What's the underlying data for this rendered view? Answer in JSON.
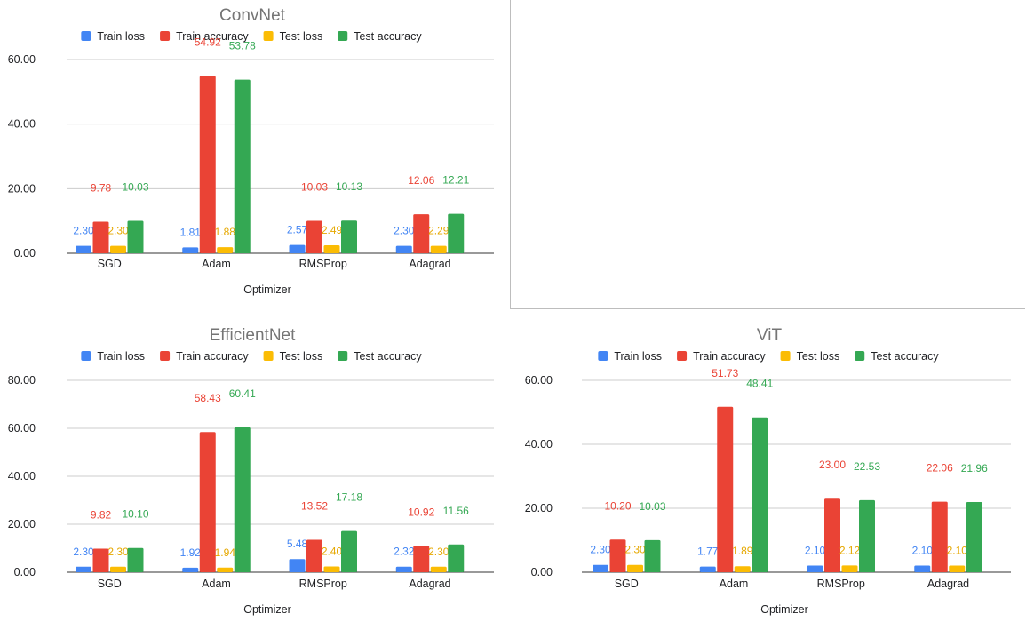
{
  "legend_labels": [
    "Train loss",
    "Train accuracy",
    "Test loss",
    "Test accuracy"
  ],
  "series_colors": [
    "#4285f4",
    "#ea4335",
    "#fbbc04",
    "#34a853"
  ],
  "chart_data": [
    {
      "type": "bar",
      "title": "ConvNet",
      "xlabel": "Optimizer",
      "ylabel": "",
      "categories": [
        "SGD",
        "Adam",
        "RMSProp",
        "Adagrad"
      ],
      "ylim": [
        0,
        60
      ],
      "yticks": [
        "0.00",
        "20.00",
        "40.00",
        "60.00"
      ],
      "grid": true,
      "legend_position": "top",
      "series": [
        {
          "name": "Train loss",
          "values": [
            2.3,
            1.81,
            2.57,
            2.3
          ],
          "labels": [
            "2.30",
            "1.81",
            "2.57",
            "2.30"
          ]
        },
        {
          "name": "Train accuracy",
          "values": [
            9.78,
            54.92,
            10.03,
            12.06
          ],
          "labels": [
            "9.78",
            "54.92",
            "10.03",
            "12.06"
          ]
        },
        {
          "name": "Test loss",
          "values": [
            2.3,
            1.88,
            2.49,
            2.29
          ],
          "labels": [
            "2.30",
            "1.88",
            "2.49",
            "2.29"
          ]
        },
        {
          "name": "Test accuracy",
          "values": [
            10.03,
            53.78,
            10.13,
            12.21
          ],
          "labels": [
            "10.03",
            "53.78",
            "10.13",
            "12.21"
          ]
        }
      ]
    },
    {
      "type": "bar",
      "title": "EfficientNet",
      "xlabel": "Optimizer",
      "ylabel": "",
      "categories": [
        "SGD",
        "Adam",
        "RMSProp",
        "Adagrad"
      ],
      "ylim": [
        0,
        80
      ],
      "yticks": [
        "0.00",
        "20.00",
        "40.00",
        "60.00",
        "80.00"
      ],
      "grid": true,
      "legend_position": "top",
      "series": [
        {
          "name": "Train loss",
          "values": [
            2.3,
            1.92,
            5.48,
            2.32
          ],
          "labels": [
            "2.30",
            "1.92",
            "5.48",
            "2.32"
          ]
        },
        {
          "name": "Train accuracy",
          "values": [
            9.82,
            58.43,
            13.52,
            10.92
          ],
          "labels": [
            "9.82",
            "58.43",
            "13.52",
            "10.92"
          ]
        },
        {
          "name": "Test loss",
          "values": [
            2.3,
            1.94,
            2.4,
            2.3
          ],
          "labels": [
            "2.30",
            "1.94",
            "2.40",
            "2.30"
          ]
        },
        {
          "name": "Test accuracy",
          "values": [
            10.1,
            60.41,
            17.18,
            11.56
          ],
          "labels": [
            "10.10",
            "60.41",
            "17.18",
            "11.56"
          ]
        }
      ]
    },
    {
      "type": "bar",
      "title": "ViT",
      "xlabel": "Optimizer",
      "ylabel": "",
      "categories": [
        "SGD",
        "Adam",
        "RMSProp",
        "Adagrad"
      ],
      "ylim": [
        0,
        60
      ],
      "yticks": [
        "0.00",
        "20.00",
        "40.00",
        "60.00"
      ],
      "grid": true,
      "legend_position": "top",
      "series": [
        {
          "name": "Train loss",
          "values": [
            2.3,
            1.77,
            2.1,
            2.1
          ],
          "labels": [
            "2.30",
            "1.77",
            "2.10",
            "2.10"
          ]
        },
        {
          "name": "Train accuracy",
          "values": [
            10.2,
            51.73,
            23.0,
            22.06
          ],
          "labels": [
            "10.20",
            "51.73",
            "23.00",
            "22.06"
          ]
        },
        {
          "name": "Test loss",
          "values": [
            2.3,
            1.89,
            2.12,
            2.1
          ],
          "labels": [
            "2.30",
            "1.89",
            "2.12",
            "2.10"
          ]
        },
        {
          "name": "Test accuracy",
          "values": [
            10.03,
            48.41,
            22.53,
            21.96
          ],
          "labels": [
            "10.03",
            "48.41",
            "22.53",
            "21.96"
          ]
        }
      ]
    }
  ]
}
